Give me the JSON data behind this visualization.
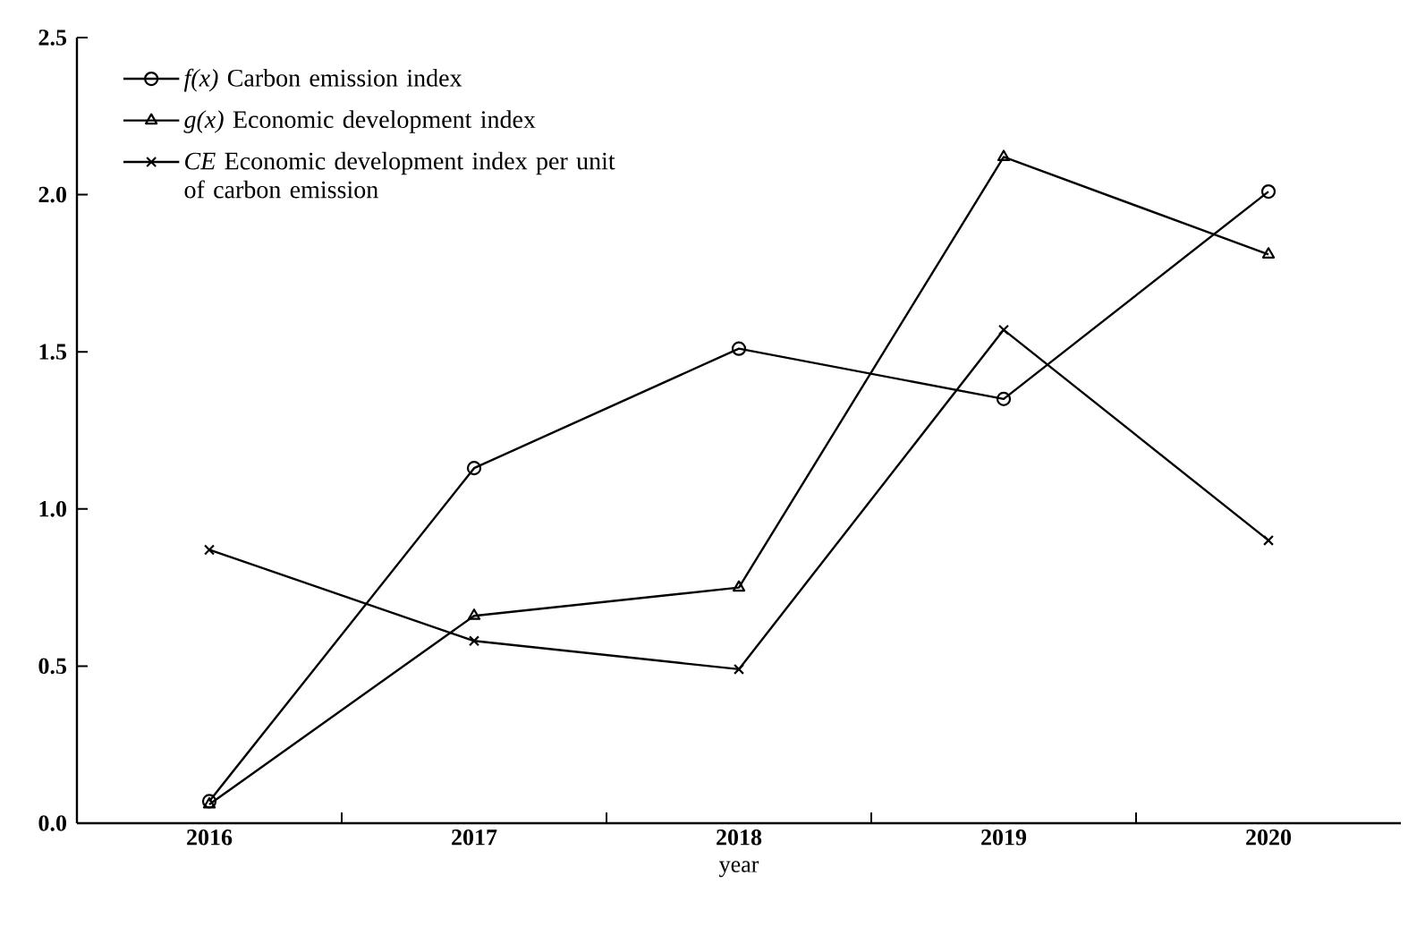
{
  "chart_data": {
    "type": "line",
    "xlabel": "year",
    "categories": [
      "2016",
      "2017",
      "2018",
      "2019",
      "2020"
    ],
    "series": [
      {
        "name": "*f(x)* Carbon emission index",
        "color": "#000000",
        "marker": "circle",
        "values": [
          0.07,
          1.13,
          1.51,
          1.35,
          2.01
        ]
      },
      {
        "name": "*g(x)* Economic development index",
        "color": "#000000",
        "marker": "triangle",
        "values": [
          0.06,
          0.66,
          0.75,
          2.12,
          1.81
        ]
      },
      {
        "name": "*CE* Economic development index per unit of carbon emission",
        "color": "#000000",
        "marker": "cross",
        "values": [
          0.87,
          0.58,
          0.49,
          1.57,
          0.9
        ]
      }
    ],
    "ylim": [
      0,
      2.5
    ],
    "yticks": [
      {
        "value": 0,
        "label": "0.0"
      },
      0.5,
      {
        "value": 1,
        "label": "1.0"
      },
      1.5,
      {
        "value": 2,
        "label": "2.0"
      },
      2.5
    ],
    "legend": "top left",
    "grid": false,
    "line_style": "solid"
  }
}
